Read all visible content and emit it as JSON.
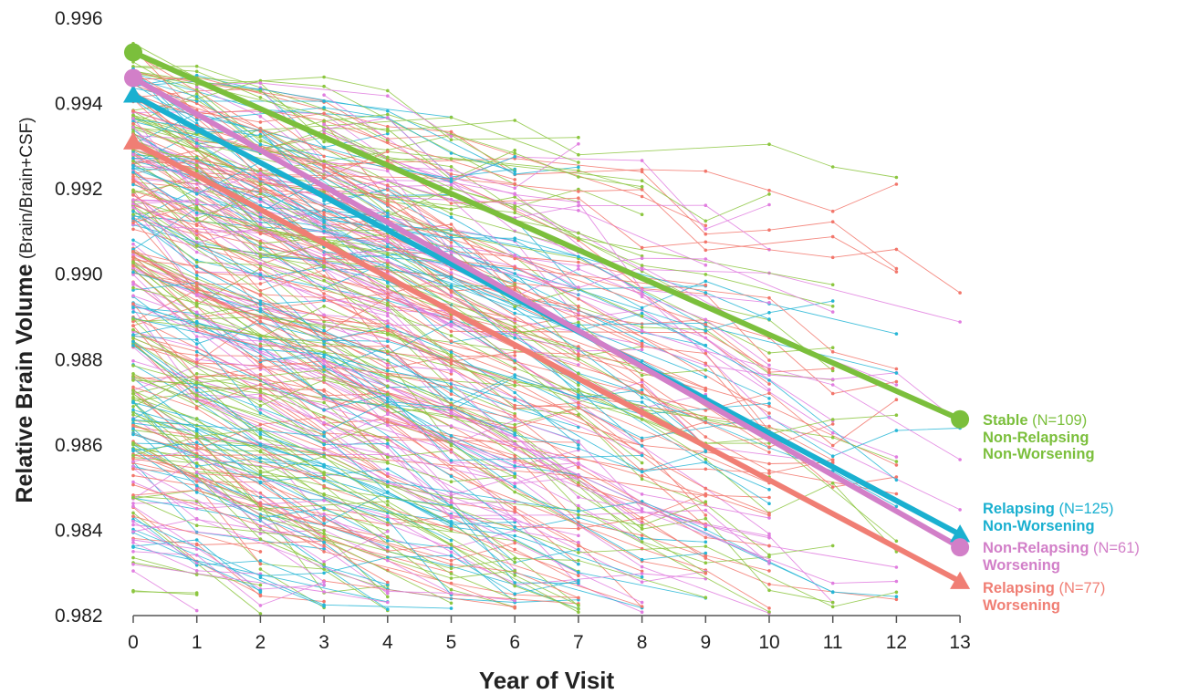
{
  "chart_data": {
    "type": "line",
    "title": "",
    "xlabel": "Year of Visit",
    "ylabel_main": "Relative Brain Volume",
    "ylabel_sub": " (Brain/Brain+CSF)",
    "x_ticks": [
      "0",
      "1",
      "2",
      "3",
      "4",
      "5",
      "6",
      "7",
      "8",
      "9",
      "10",
      "11",
      "12",
      "13"
    ],
    "y_ticks": [
      "0.996",
      "0.994",
      "0.992",
      "0.990",
      "0.988",
      "0.986",
      "0.984",
      "0.982"
    ],
    "xlim": [
      0,
      13
    ],
    "ylim": [
      0.982,
      0.996
    ],
    "grid": false,
    "legend_position": "right, at line ends",
    "series": [
      {
        "key": "stable",
        "legend_label": "Stable",
        "legend_count": " (N=109)",
        "legend_lines": [
          "Non-Relapsing",
          "Non-Worsening"
        ],
        "color": "#7bbf3c",
        "marker": "circle",
        "x": [
          0,
          13
        ],
        "y": [
          0.9952,
          0.9866
        ]
      },
      {
        "key": "relapsing_non_worsening",
        "legend_label": "Relapsing",
        "legend_count": " (N=125)",
        "legend_lines": [
          "Non-Worsening"
        ],
        "color": "#1ab0d0",
        "marker": "triangle",
        "x": [
          0,
          13
        ],
        "y": [
          0.9942,
          0.9839
        ]
      },
      {
        "key": "non_relapsing_worsening",
        "legend_label": "Non-Relapsing",
        "legend_count": " (N=61)",
        "legend_lines": [
          "Worsening"
        ],
        "color": "#d27fc8",
        "marker": "circle",
        "x": [
          0,
          13
        ],
        "y": [
          0.9946,
          0.9836
        ]
      },
      {
        "key": "relapsing_worsening",
        "legend_label": "Relapsing",
        "legend_count": " (N=77)",
        "legend_lines": [
          "Worsening"
        ],
        "color": "#f07e74",
        "marker": "triangle",
        "x": [
          0,
          13
        ],
        "y": [
          0.9931,
          0.9828
        ]
      }
    ],
    "individual_trajectories": {
      "count": 372,
      "colors": [
        "#8cc63f",
        "#27b6d6",
        "#e07ddf",
        "#f2766b"
      ]
    }
  }
}
